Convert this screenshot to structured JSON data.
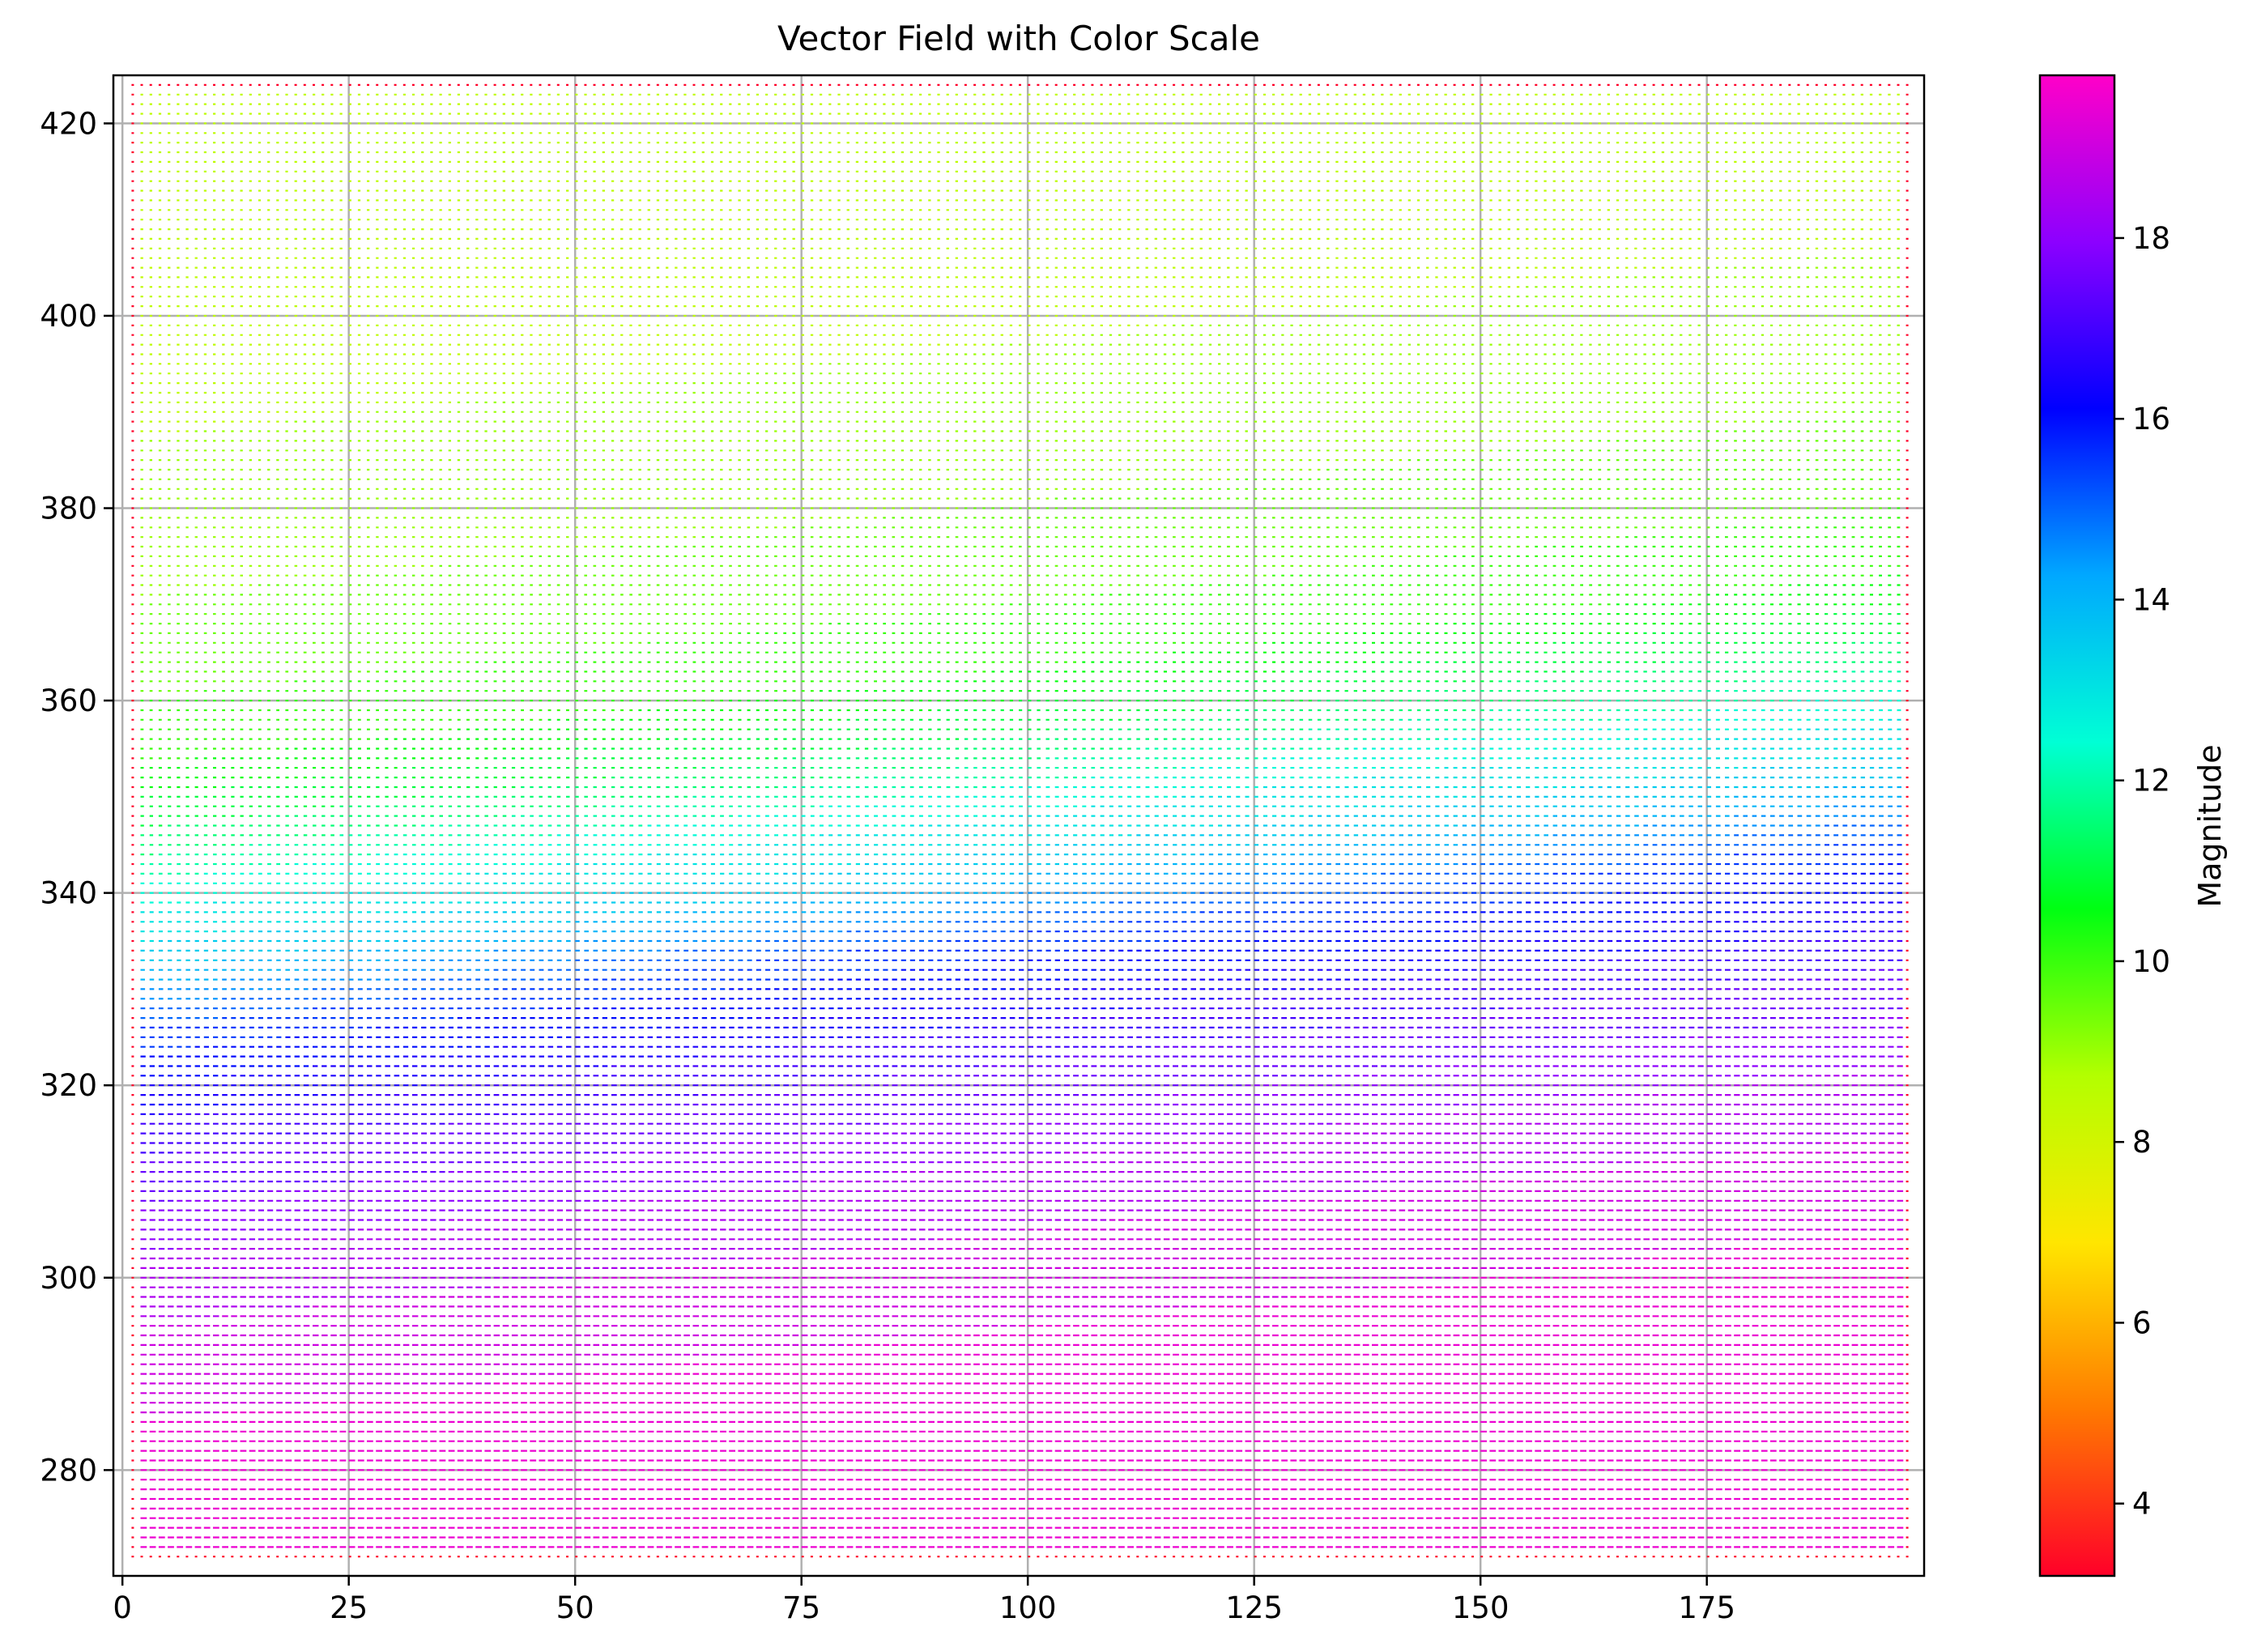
{
  "chart_data": {
    "type": "quiver",
    "title": "Vector Field with Color Scale",
    "xlabel": "",
    "ylabel": "",
    "xlim": [
      -1,
      199
    ],
    "ylim": [
      269,
      425
    ],
    "x_ticks": [
      0,
      25,
      50,
      75,
      100,
      125,
      150,
      175
    ],
    "y_ticks": [
      280,
      300,
      320,
      340,
      360,
      380,
      400,
      420
    ],
    "grid": true,
    "field": {
      "x_range": [
        1,
        197
      ],
      "y_range": [
        271,
        424
      ],
      "grid_spacing": 1,
      "magnitude_by_y": [
        {
          "y": 271,
          "magnitude": 19.5
        },
        {
          "y": 280,
          "magnitude": 19.5
        },
        {
          "y": 300,
          "magnitude": 18.5
        },
        {
          "y": 315,
          "magnitude": 17.0
        },
        {
          "y": 325,
          "magnitude": 15.5
        },
        {
          "y": 333,
          "magnitude": 13.5
        },
        {
          "y": 340,
          "magnitude": 12.5
        },
        {
          "y": 345,
          "magnitude": 11.5
        },
        {
          "y": 355,
          "magnitude": 10.0
        },
        {
          "y": 380,
          "magnitude": 8.8
        },
        {
          "y": 424,
          "magnitude": 8.5
        }
      ],
      "transition_tilt": "band shifts upward with increasing x",
      "boundary_magnitude": 3.2,
      "direction": "rightward"
    },
    "colorbar": {
      "label": "Magnitude",
      "colormap": "gist_rainbow (red→yellow→green→cyan→blue→magenta)",
      "range": [
        3.2,
        19.8
      ],
      "ticks": [
        4,
        6,
        8,
        10,
        12,
        14,
        16,
        18
      ],
      "stops": [
        "#ff0029",
        "#ff7a00",
        "#ffe600",
        "#b3ff00",
        "#00ff12",
        "#00ffd5",
        "#00a8ff",
        "#0000ff",
        "#8c00ff",
        "#ff00c8"
      ]
    }
  }
}
